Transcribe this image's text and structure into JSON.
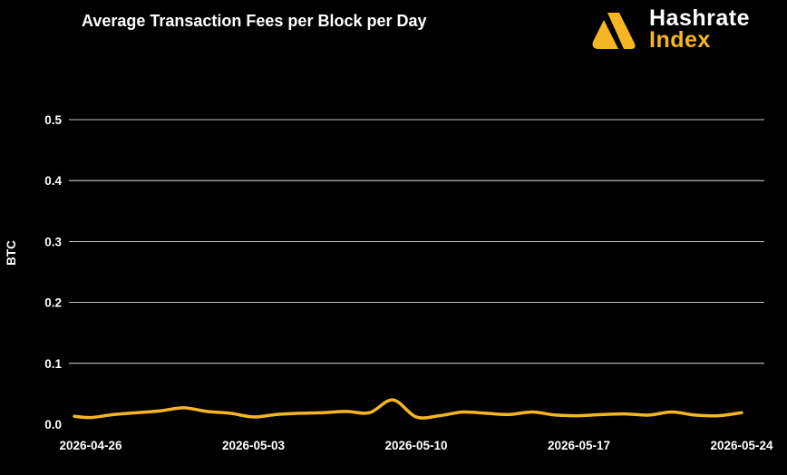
{
  "logo": {
    "word1": "Hashrate",
    "word2": "Index"
  },
  "chart_data": {
    "type": "line",
    "title": "Average Transaction Fees per Block per Day",
    "xlabel": "",
    "ylabel": "BTC",
    "ylim": [
      0,
      0.5
    ],
    "yticks": [
      0.0,
      0.1,
      0.2,
      0.3,
      0.4,
      0.5
    ],
    "xticks": [
      "2026-04-26",
      "2026-05-03",
      "2026-05-10",
      "2026-05-17",
      "2026-05-24"
    ],
    "grid": true,
    "line_color": "#f6b624",
    "x": [
      "2026-04-26",
      "2026-04-27",
      "2026-04-28",
      "2026-04-29",
      "2026-04-30",
      "2026-05-01",
      "2026-05-02",
      "2026-05-03",
      "2026-05-04",
      "2026-05-05",
      "2026-05-06",
      "2026-05-07",
      "2026-05-08",
      "2026-05-09",
      "2026-05-10",
      "2026-05-11",
      "2026-05-12",
      "2026-05-13",
      "2026-05-14",
      "2026-05-15",
      "2026-05-16",
      "2026-05-17",
      "2026-05-18",
      "2026-05-19",
      "2026-05-20",
      "2026-05-21",
      "2026-05-22",
      "2026-05-23",
      "2026-05-24"
    ],
    "values": [
      0.011,
      0.016,
      0.019,
      0.022,
      0.027,
      0.021,
      0.018,
      0.012,
      0.016,
      0.018,
      0.019,
      0.021,
      0.019,
      0.04,
      0.012,
      0.014,
      0.02,
      0.018,
      0.016,
      0.02,
      0.015,
      0.014,
      0.016,
      0.017,
      0.015,
      0.02,
      0.015,
      0.014,
      0.019
    ],
    "x_start_value": 0.013,
    "x_start_offset_days": -0.7
  }
}
